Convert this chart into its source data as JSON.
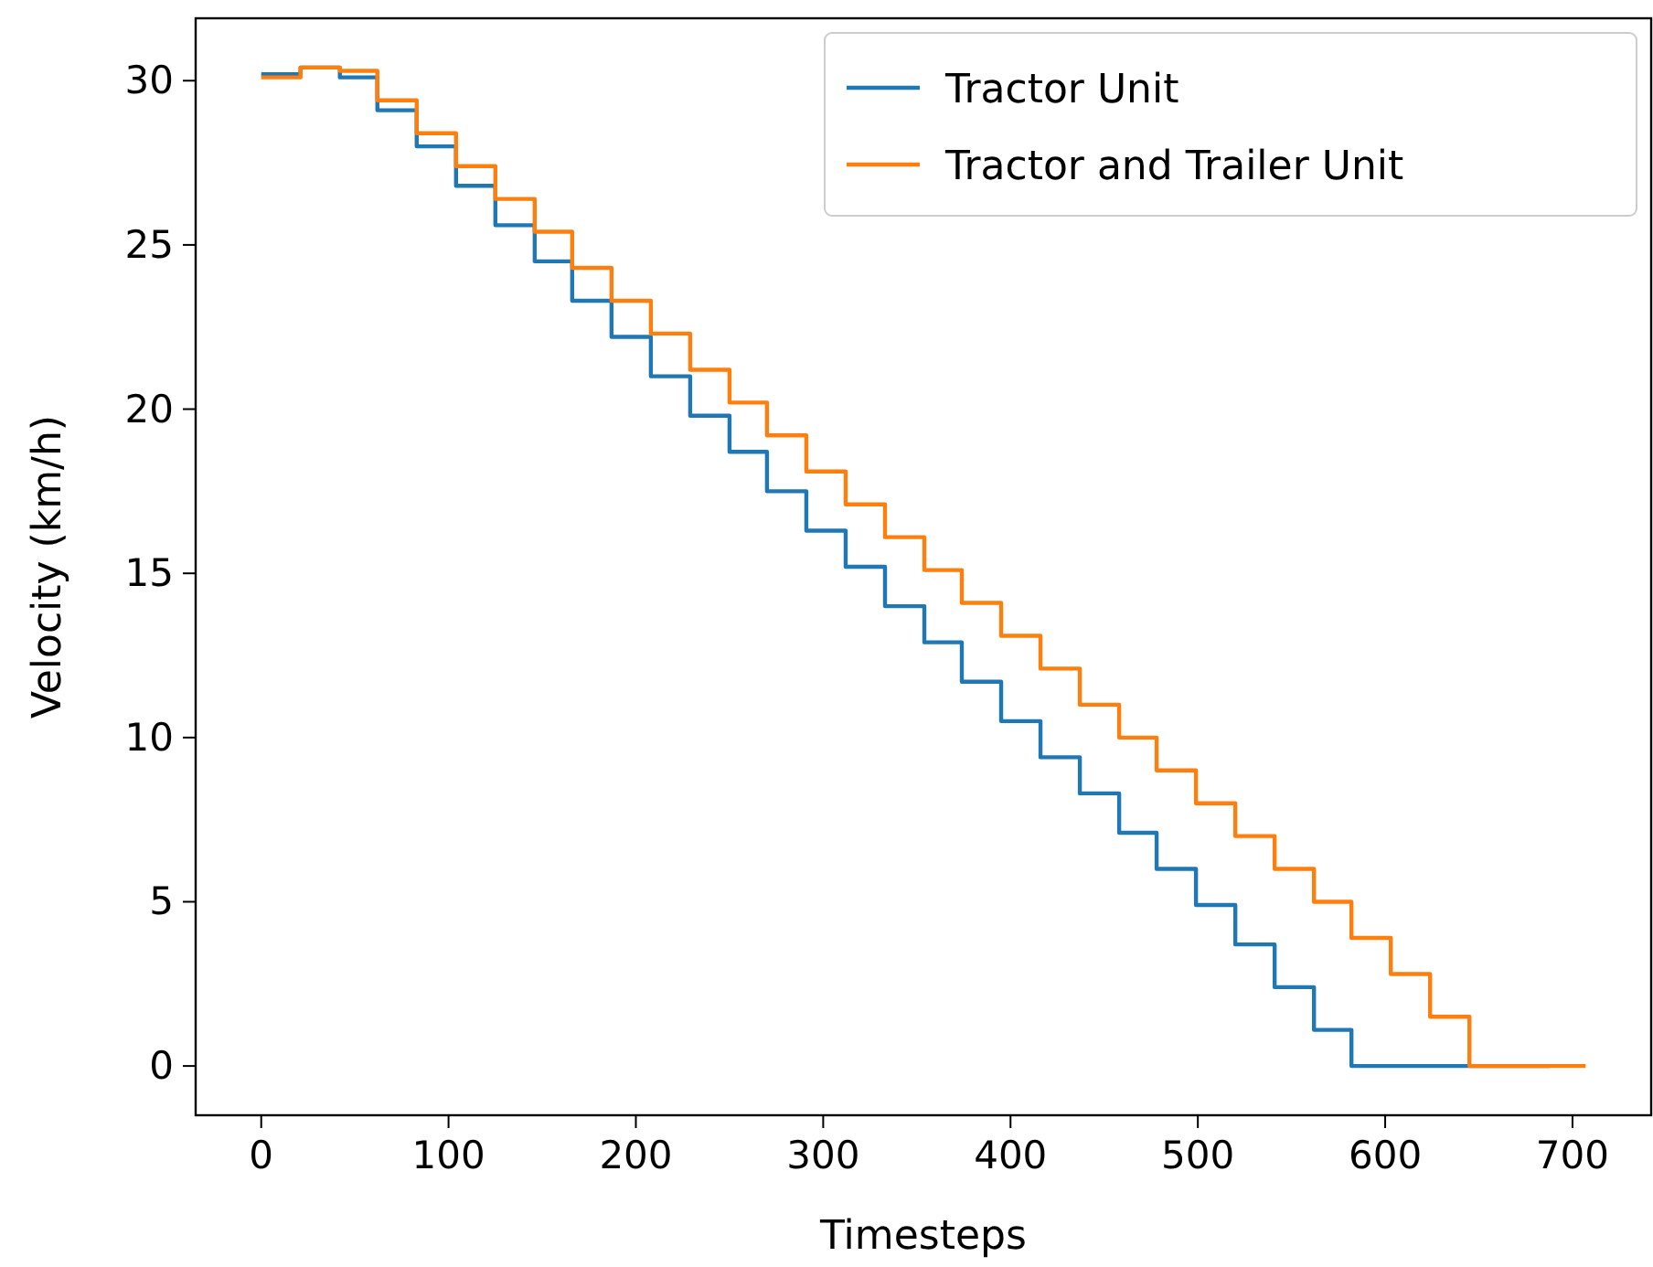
{
  "chart_data": {
    "type": "step",
    "xlabel": "Timesteps",
    "ylabel": "Velocity (km/h)",
    "xlim": [
      -35,
      742
    ],
    "ylim": [
      -1.5,
      31.9
    ],
    "xticks": [
      0,
      100,
      200,
      300,
      400,
      500,
      600,
      700
    ],
    "yticks": [
      0,
      5,
      10,
      15,
      20,
      25,
      30
    ],
    "grid": false,
    "legend": "top right",
    "series": [
      {
        "name": "Tractor Unit",
        "color": "#1f77b4",
        "x": [
          0,
          21,
          42,
          62,
          83,
          104,
          125,
          146,
          166,
          187,
          208,
          229,
          250,
          270,
          291,
          312,
          333,
          354,
          374,
          395,
          416,
          437,
          458,
          478,
          499,
          520,
          541,
          562,
          582,
          688
        ],
        "values": [
          30.2,
          30.4,
          30.1,
          29.1,
          28.0,
          26.8,
          25.6,
          24.5,
          23.3,
          22.2,
          21.0,
          19.8,
          18.7,
          17.5,
          16.3,
          15.2,
          14.0,
          12.9,
          11.7,
          10.5,
          9.4,
          8.3,
          7.1,
          6.0,
          4.9,
          3.7,
          2.4,
          1.1,
          0,
          0
        ]
      },
      {
        "name": "Tractor and Trailer Unit",
        "color": "#ff7f0e",
        "x": [
          0,
          21,
          42,
          62,
          83,
          104,
          125,
          146,
          166,
          187,
          208,
          229,
          250,
          270,
          291,
          312,
          333,
          354,
          374,
          395,
          416,
          437,
          458,
          478,
          499,
          520,
          541,
          562,
          582,
          603,
          624,
          645,
          707
        ],
        "values": [
          30.1,
          30.4,
          30.3,
          29.4,
          28.4,
          27.4,
          26.4,
          25.4,
          24.3,
          23.3,
          22.3,
          21.2,
          20.2,
          19.2,
          18.1,
          17.1,
          16.1,
          15.1,
          14.1,
          13.1,
          12.1,
          11.0,
          10.0,
          9.0,
          8.0,
          7.0,
          6.0,
          5.0,
          3.9,
          2.8,
          1.5,
          0,
          0
        ]
      }
    ]
  }
}
